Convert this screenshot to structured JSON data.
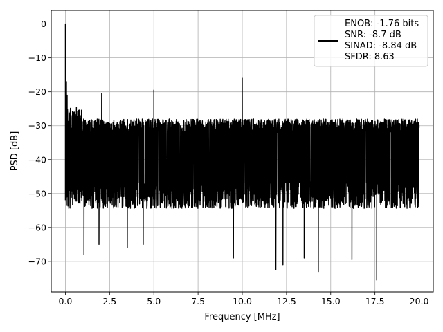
{
  "chart_data": {
    "type": "line",
    "title": "",
    "xlabel": "Frequency [MHz]",
    "ylabel": "PSD [dB]",
    "xlim": [
      -0.8,
      20.8
    ],
    "ylim": [
      -79,
      4
    ],
    "xticks": [
      0.0,
      2.5,
      5.0,
      7.5,
      10.0,
      12.5,
      15.0,
      17.5,
      20.0
    ],
    "xtick_labels": [
      "0.0",
      "2.5",
      "5.0",
      "7.5",
      "10.0",
      "12.5",
      "15.0",
      "17.5",
      "20.0"
    ],
    "yticks": [
      0,
      -10,
      -20,
      -30,
      -40,
      -50,
      -60,
      -70
    ],
    "ytick_labels": [
      "0",
      "−10",
      "−20",
      "−30",
      "−40",
      "−50",
      "−60",
      "−70"
    ],
    "grid": true,
    "line_color": "#000000",
    "legend_placement": "upper-right",
    "legend": {
      "lines": [
        "ENOB: -1.76 bits",
        "SNR: -8.7 dB",
        "SINAD: -8.84 dB",
        "SFDR: 8.63"
      ]
    },
    "series": [
      {
        "noise_floor_db": -40,
        "noise_top_db": -30,
        "noise_bottom_db": -52,
        "x_range": [
          0,
          20
        ],
        "spikes": [
          {
            "x": 0.0,
            "y": 0
          },
          {
            "x": 0.03,
            "y": -11
          },
          {
            "x": 0.06,
            "y": -17
          },
          {
            "x": 0.1,
            "y": -21
          },
          {
            "x": 2.05,
            "y": -20.5
          },
          {
            "x": 5.0,
            "y": -19.5
          },
          {
            "x": 10.0,
            "y": -16
          },
          {
            "x": 1.05,
            "y": -68
          },
          {
            "x": 1.9,
            "y": -65
          },
          {
            "x": 3.5,
            "y": -66
          },
          {
            "x": 4.4,
            "y": -65
          },
          {
            "x": 9.5,
            "y": -69
          },
          {
            "x": 11.9,
            "y": -72.5
          },
          {
            "x": 12.3,
            "y": -71
          },
          {
            "x": 13.5,
            "y": -69
          },
          {
            "x": 14.3,
            "y": -73
          },
          {
            "x": 16.2,
            "y": -69.5
          },
          {
            "x": 17.6,
            "y": -75.5
          }
        ]
      }
    ]
  }
}
